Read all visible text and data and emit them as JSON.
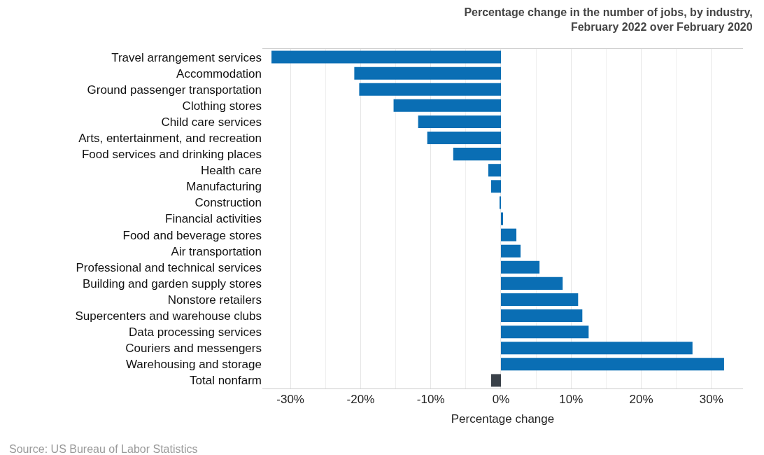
{
  "chart_data": {
    "type": "bar",
    "orientation": "horizontal",
    "title": "Percentage change in the number of jobs, by industry,\nFebruary 2022 over February 2020",
    "xlabel": "Percentage change",
    "categories": [
      "Travel arrangement services",
      "Accommodation",
      "Ground passenger transportation",
      "Clothing stores",
      "Child care services",
      "Arts, entertainment, and recreation",
      "Food services and drinking places",
      "Health care",
      "Manufacturing",
      "Construction",
      "Financial activities",
      "Food and beverage stores",
      "Air transportation",
      "Professional and technical services",
      "Building and garden supply stores",
      "Nonstore retailers",
      "Supercenters and warehouse clubs",
      "Data processing services",
      "Couriers and messengers",
      "Warehousing and storage",
      "Total nonfarm"
    ],
    "values": [
      -32.7,
      -20.9,
      -20.2,
      -15.3,
      -11.8,
      -10.5,
      -6.8,
      -1.8,
      -1.4,
      -0.1,
      0.3,
      2.2,
      2.8,
      5.5,
      8.8,
      11.0,
      11.6,
      12.5,
      27.3,
      31.8,
      -1.4
    ],
    "colors": [
      "#0a6eb4",
      "#0a6eb4",
      "#0a6eb4",
      "#0a6eb4",
      "#0a6eb4",
      "#0a6eb4",
      "#0a6eb4",
      "#0a6eb4",
      "#0a6eb4",
      "#0a6eb4",
      "#0a6eb4",
      "#0a6eb4",
      "#0a6eb4",
      "#0a6eb4",
      "#0a6eb4",
      "#0a6eb4",
      "#0a6eb4",
      "#0a6eb4",
      "#0a6eb4",
      "#0a6eb4",
      "#3a4149"
    ],
    "xlim": [
      -34,
      34.5
    ],
    "xticks": [
      {
        "value": -30,
        "label": "-30%"
      },
      {
        "value": -20,
        "label": "-20%"
      },
      {
        "value": -10,
        "label": "-10%"
      },
      {
        "value": 0,
        "label": "0%"
      },
      {
        "value": 10,
        "label": "10%"
      },
      {
        "value": 20,
        "label": "20%"
      },
      {
        "value": 30,
        "label": "30%"
      }
    ],
    "grid": "x",
    "legend": false,
    "annotations": [
      "Source: US Bureau of Labor Statistics"
    ]
  }
}
